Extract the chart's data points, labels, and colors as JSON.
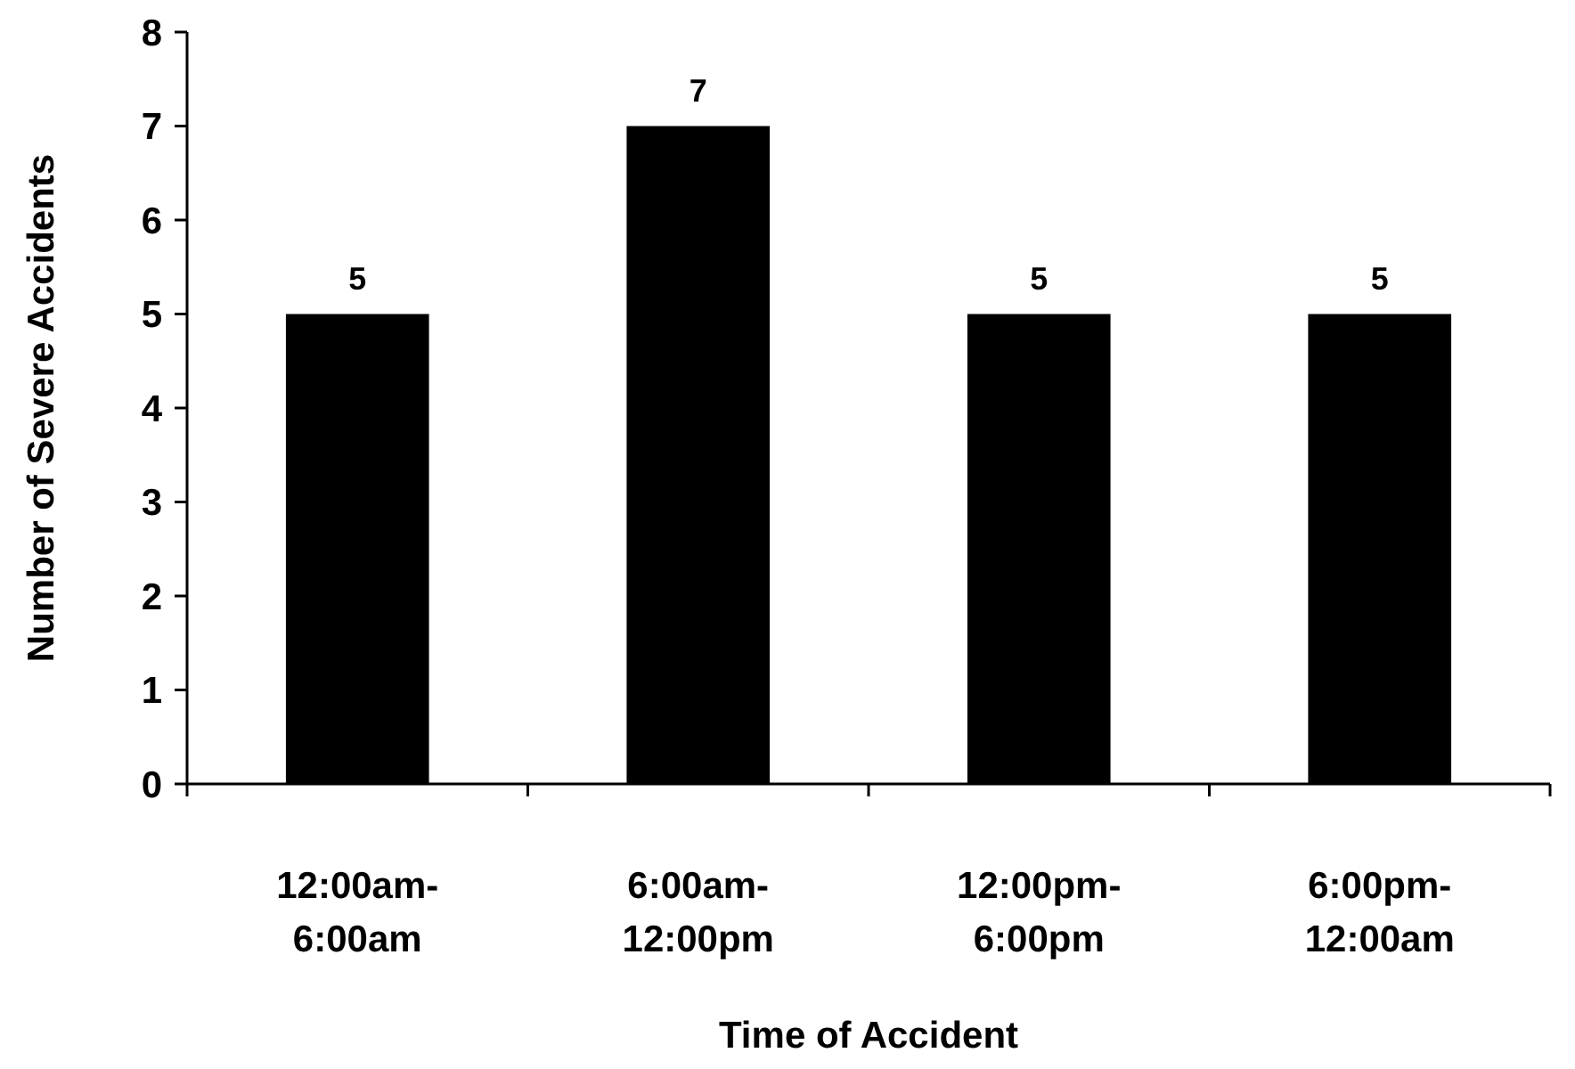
{
  "chart_data": {
    "type": "bar",
    "xlabel": "Time of Accident",
    "ylabel": "Number of Severe Accidents",
    "categories": [
      "12:00am-6:00am",
      "6:00am-12:00pm",
      "12:00pm-6:00pm",
      "6:00pm-12:00am"
    ],
    "values": [
      5,
      7,
      5,
      5
    ],
    "color": "#000000",
    "ylim": [
      0,
      8
    ],
    "yticks": [
      0,
      1,
      2,
      3,
      4,
      5,
      6,
      7,
      8
    ],
    "data_labels": true,
    "grid": false
  }
}
